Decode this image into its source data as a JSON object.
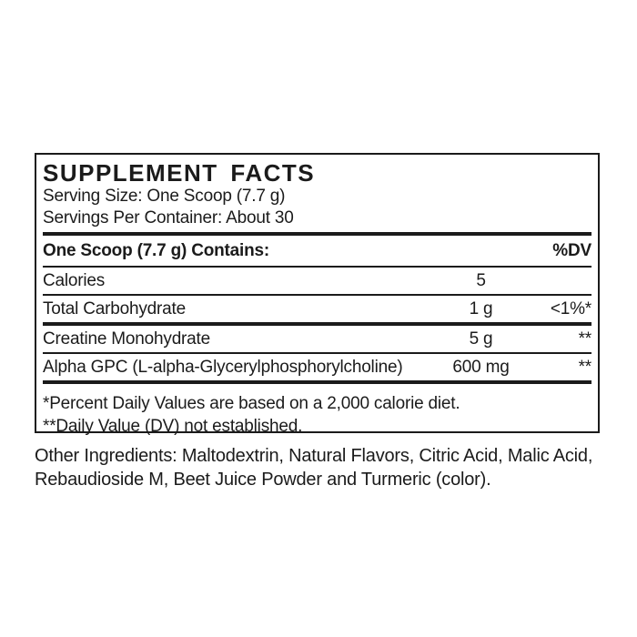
{
  "label": {
    "title": "SUPPLEMENT FACTS",
    "serving_size": "Serving Size: One Scoop (7.7 g)",
    "servings_per_container": "Servings Per Container: About 30",
    "table_header": {
      "contains": "One Scoop (7.7 g) Contains:",
      "dv": "%DV"
    },
    "rows": [
      {
        "name": "Calories",
        "amount": "5",
        "dv": ""
      },
      {
        "name": "Total Carbohydrate",
        "amount": "1 g",
        "dv": "<1%*"
      },
      {
        "name": "Creatine Monohydrate",
        "amount": "5 g",
        "dv": "**"
      },
      {
        "name": "Alpha GPC (L-alpha-Glycerylphosphorylcholine)",
        "amount": "600 mg",
        "dv": "**"
      }
    ],
    "footnotes": [
      "*Percent Daily Values are based on a 2,000 calorie diet.",
      "**Daily Value (DV) not established."
    ],
    "other_ingredients_lines": [
      "Other Ingredients: Maltodextrin, Natural Flavors, Citric Acid, Malic Acid,",
      "Rebaudioside M, Beet Juice Powder and Turmeric (color)."
    ],
    "colors": {
      "text": "#1b1b1b",
      "background": "#ffffff"
    }
  }
}
